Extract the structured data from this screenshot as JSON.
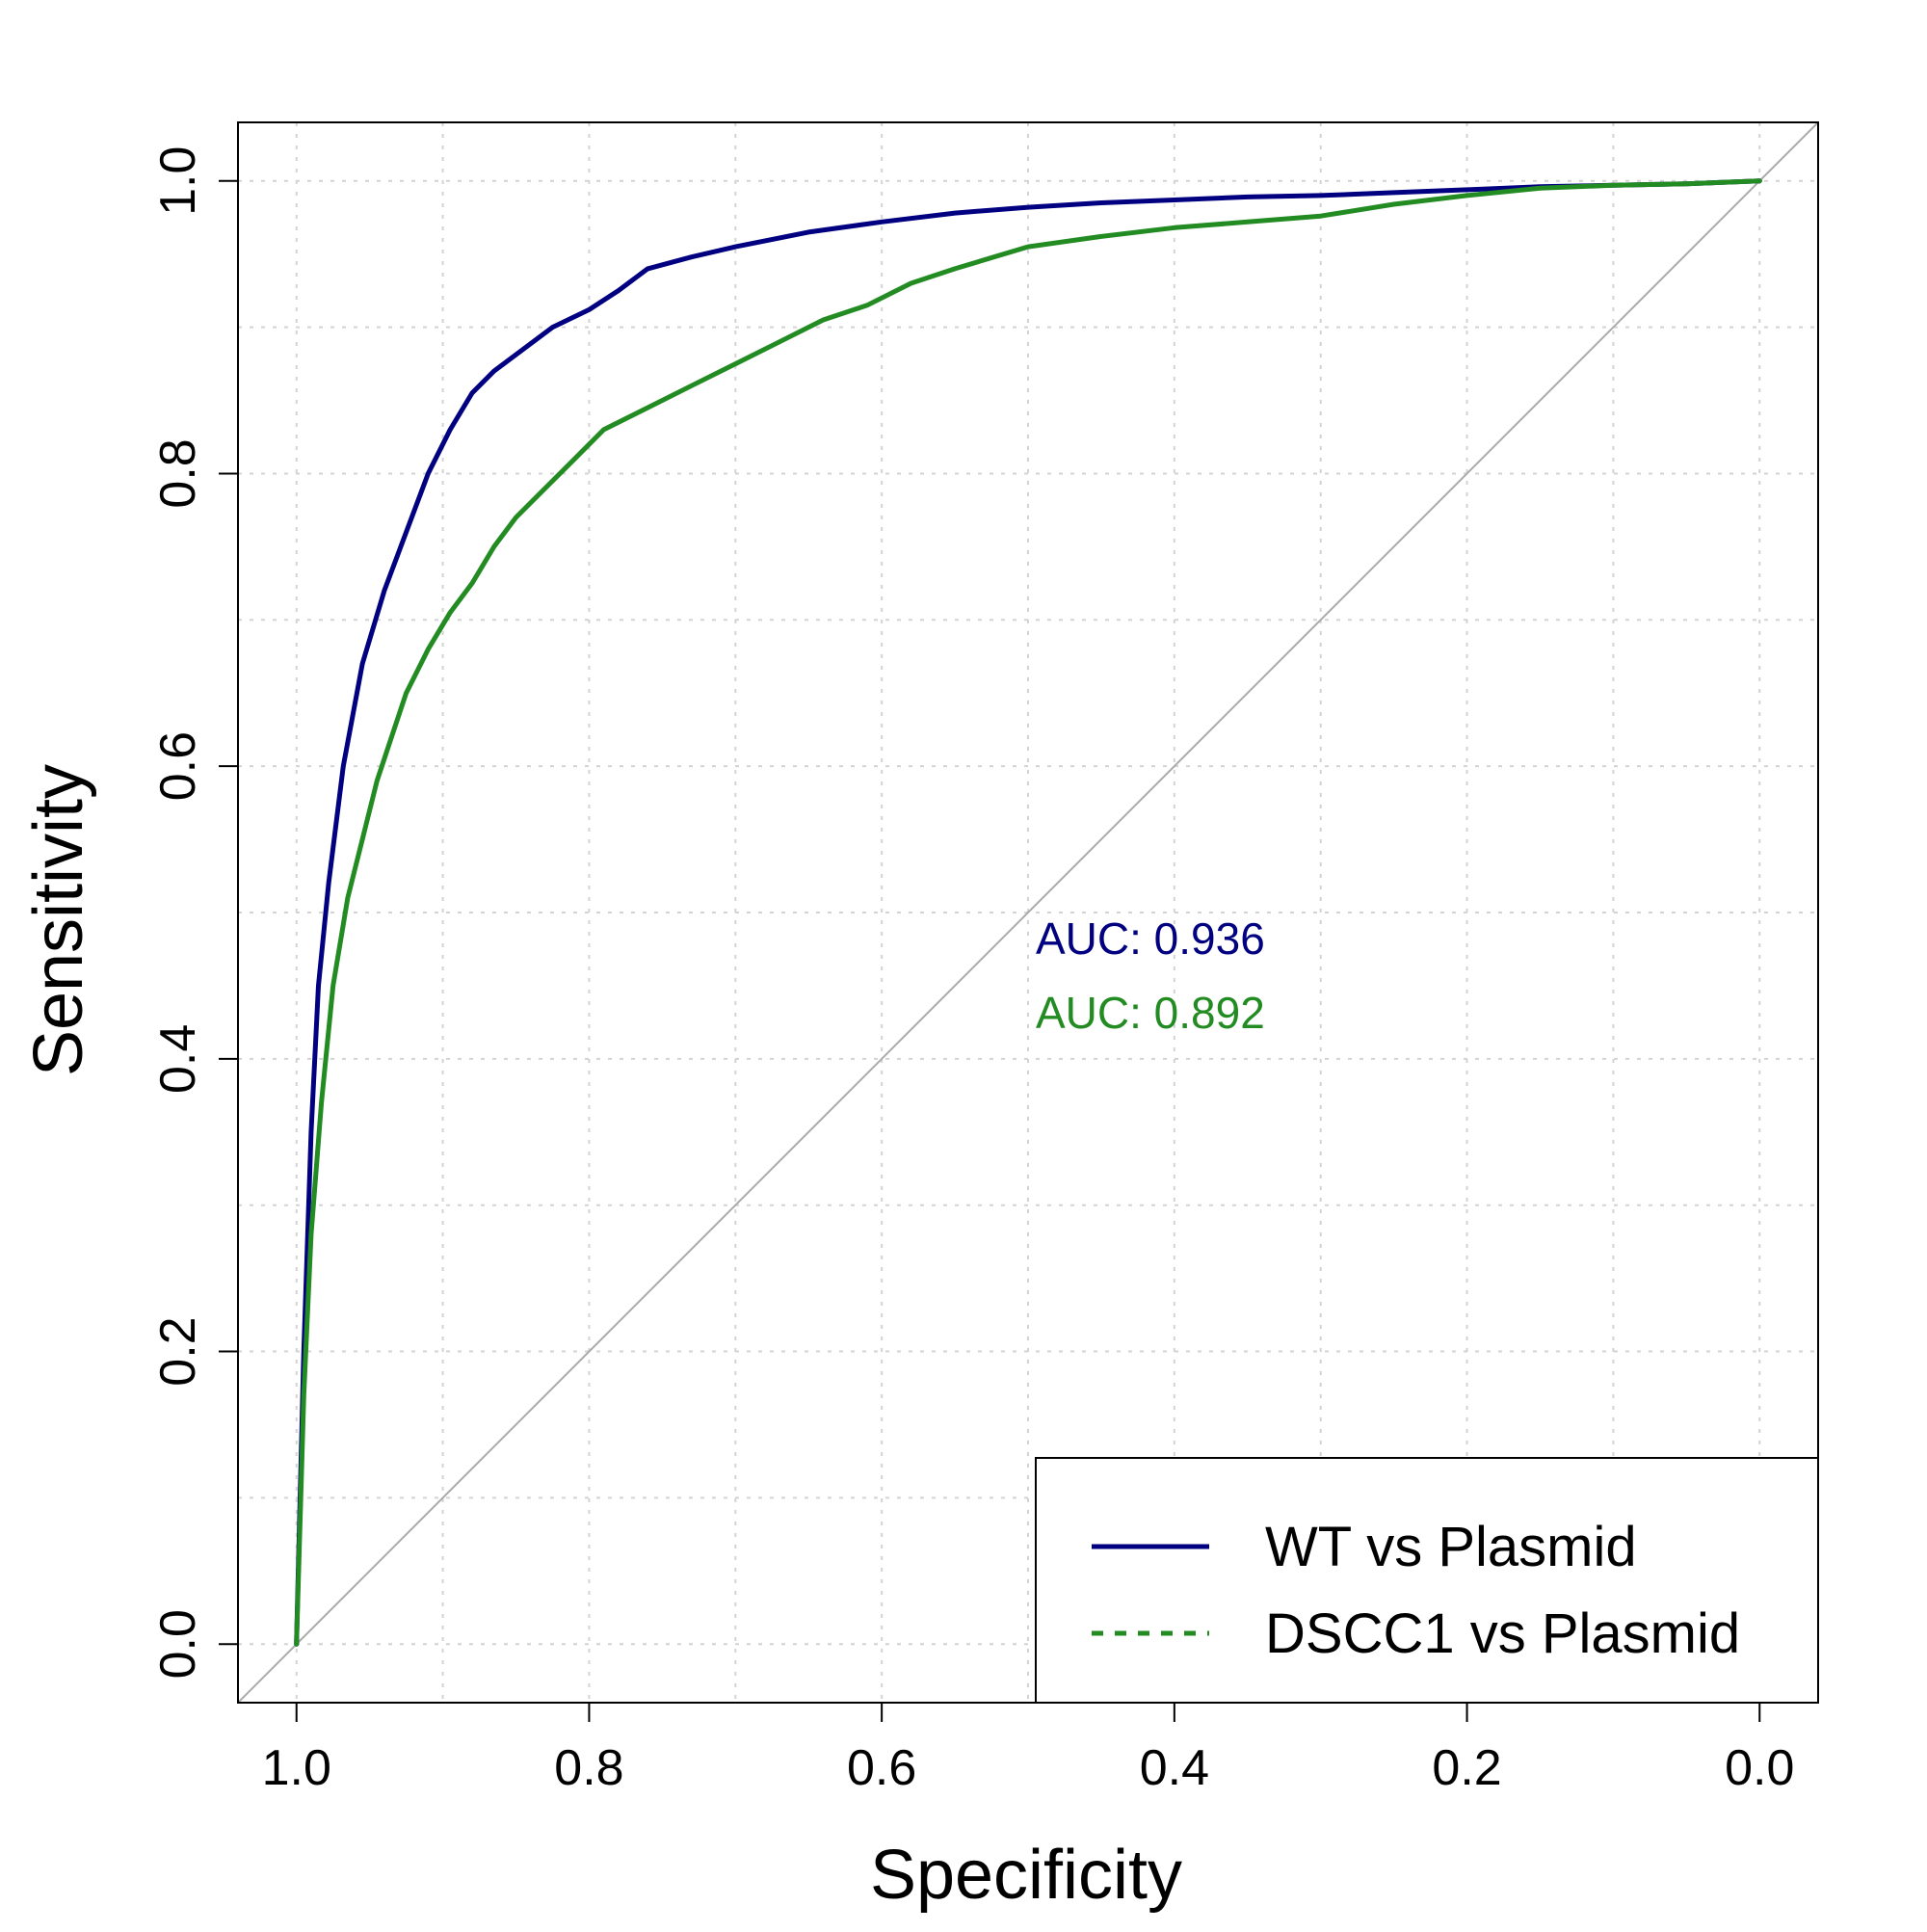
{
  "chart_data": {
    "type": "line",
    "title": "",
    "xlabel": "Specificity",
    "ylabel": "Sensitivity",
    "xlim": [
      1.0,
      0.0
    ],
    "ylim": [
      0.0,
      1.0
    ],
    "x_reversed": true,
    "x_ticks": [
      "1.0",
      "0.8",
      "0.6",
      "0.4",
      "0.2",
      "0.0"
    ],
    "y_ticks": [
      "0.0",
      "0.2",
      "0.4",
      "0.6",
      "0.8",
      "1.0"
    ],
    "grid": true,
    "legend_position": "bottom-right",
    "reference_line": {
      "from": [
        1.0,
        0.0
      ],
      "to": [
        0.0,
        1.0
      ],
      "color": "#aaaaaa"
    },
    "series": [
      {
        "name": "WT vs Plasmid",
        "color": "#000080",
        "line_style": "solid",
        "auc_label": "AUC: 0.936",
        "points": [
          [
            1.0,
            0.0
          ],
          [
            0.995,
            0.2
          ],
          [
            0.99,
            0.35
          ],
          [
            0.985,
            0.45
          ],
          [
            0.978,
            0.52
          ],
          [
            0.968,
            0.6
          ],
          [
            0.955,
            0.67
          ],
          [
            0.94,
            0.72
          ],
          [
            0.925,
            0.76
          ],
          [
            0.91,
            0.8
          ],
          [
            0.895,
            0.83
          ],
          [
            0.88,
            0.855
          ],
          [
            0.865,
            0.87
          ],
          [
            0.845,
            0.885
          ],
          [
            0.825,
            0.9
          ],
          [
            0.8,
            0.912
          ],
          [
            0.78,
            0.925
          ],
          [
            0.76,
            0.94
          ],
          [
            0.73,
            0.948
          ],
          [
            0.7,
            0.955
          ],
          [
            0.65,
            0.965
          ],
          [
            0.6,
            0.972
          ],
          [
            0.55,
            0.978
          ],
          [
            0.5,
            0.982
          ],
          [
            0.45,
            0.985
          ],
          [
            0.4,
            0.987
          ],
          [
            0.35,
            0.989
          ],
          [
            0.3,
            0.99
          ],
          [
            0.25,
            0.992
          ],
          [
            0.2,
            0.994
          ],
          [
            0.15,
            0.996
          ],
          [
            0.1,
            0.997
          ],
          [
            0.05,
            0.998
          ],
          [
            0.0,
            1.0
          ]
        ]
      },
      {
        "name": "DSCC1 vs Plasmid",
        "color": "#228B22",
        "line_style": "dashed",
        "auc_label": "AUC: 0.892",
        "points": [
          [
            1.0,
            0.0
          ],
          [
            0.995,
            0.17
          ],
          [
            0.99,
            0.28
          ],
          [
            0.983,
            0.37
          ],
          [
            0.975,
            0.45
          ],
          [
            0.965,
            0.51
          ],
          [
            0.955,
            0.55
          ],
          [
            0.945,
            0.59
          ],
          [
            0.935,
            0.62
          ],
          [
            0.925,
            0.65
          ],
          [
            0.91,
            0.68
          ],
          [
            0.895,
            0.705
          ],
          [
            0.88,
            0.725
          ],
          [
            0.865,
            0.75
          ],
          [
            0.85,
            0.77
          ],
          [
            0.83,
            0.79
          ],
          [
            0.81,
            0.81
          ],
          [
            0.79,
            0.83
          ],
          [
            0.76,
            0.845
          ],
          [
            0.73,
            0.86
          ],
          [
            0.7,
            0.875
          ],
          [
            0.67,
            0.89
          ],
          [
            0.64,
            0.905
          ],
          [
            0.61,
            0.915
          ],
          [
            0.58,
            0.93
          ],
          [
            0.55,
            0.94
          ],
          [
            0.5,
            0.955
          ],
          [
            0.45,
            0.962
          ],
          [
            0.4,
            0.968
          ],
          [
            0.35,
            0.972
          ],
          [
            0.3,
            0.976
          ],
          [
            0.25,
            0.984
          ],
          [
            0.2,
            0.99
          ],
          [
            0.15,
            0.995
          ],
          [
            0.1,
            0.997
          ],
          [
            0.05,
            0.998
          ],
          [
            0.0,
            1.0
          ]
        ]
      }
    ]
  }
}
